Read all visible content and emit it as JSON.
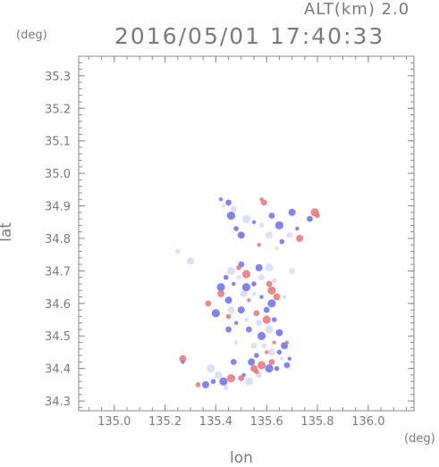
{
  "header": {
    "altitude_label": "ALT(km) 2.0",
    "timestamp": "2016/05/01 17:40:33"
  },
  "axes": {
    "y_unit": "(deg)",
    "x_unit": "(deg)",
    "y_label": "lat",
    "x_label": "lon",
    "x_ticks": [
      "135.0",
      "135.2",
      "135.4",
      "135.6",
      "135.8",
      "136.0"
    ],
    "y_ticks": [
      "34.3",
      "34.4",
      "34.5",
      "34.6",
      "34.7",
      "34.8",
      "34.9",
      "35.0",
      "35.1",
      "35.2",
      "35.3"
    ],
    "x_range": [
      134.86,
      136.18
    ],
    "y_range": [
      34.27,
      35.36
    ]
  },
  "colors": {
    "frame": "#8a8a8a",
    "positive": "#e5747a",
    "negative": "#6b6ee8",
    "neutral": "#d7d9f4"
  },
  "chart_data": {
    "type": "scatter",
    "title": "2016/05/01 17:40:33",
    "xlabel": "lon",
    "ylabel": "lat",
    "xlim": [
      134.86,
      136.18
    ],
    "ylim": [
      34.27,
      35.36
    ],
    "series": [
      {
        "name": "positive",
        "points": [
          [
            135.58,
            34.92
          ],
          [
            135.59,
            34.91
          ],
          [
            135.79,
            34.88
          ],
          [
            135.8,
            34.87
          ],
          [
            135.73,
            34.8
          ],
          [
            135.57,
            34.78
          ],
          [
            135.61,
            34.66
          ],
          [
            135.62,
            34.64
          ],
          [
            135.49,
            34.71
          ],
          [
            135.64,
            34.62
          ],
          [
            135.53,
            34.61
          ],
          [
            135.56,
            34.57
          ],
          [
            135.6,
            34.55
          ],
          [
            135.45,
            34.56
          ],
          [
            135.42,
            34.63
          ],
          [
            135.6,
            34.45
          ],
          [
            135.62,
            34.42
          ],
          [
            135.58,
            34.41
          ],
          [
            135.56,
            34.39
          ],
          [
            135.55,
            34.4
          ],
          [
            135.63,
            34.48
          ],
          [
            135.5,
            34.37
          ],
          [
            135.46,
            34.37
          ],
          [
            135.33,
            34.35
          ],
          [
            135.27,
            34.43
          ],
          [
            135.68,
            34.48
          ],
          [
            135.37,
            34.6
          ],
          [
            135.52,
            34.69
          ]
        ]
      },
      {
        "name": "negative",
        "points": [
          [
            135.42,
            34.92
          ],
          [
            135.45,
            34.91
          ],
          [
            135.46,
            34.87
          ],
          [
            135.48,
            34.83
          ],
          [
            135.5,
            34.81
          ],
          [
            135.55,
            34.85
          ],
          [
            135.62,
            34.87
          ],
          [
            135.65,
            34.84
          ],
          [
            135.66,
            34.79
          ],
          [
            135.7,
            34.88
          ],
          [
            135.72,
            34.83
          ],
          [
            135.77,
            34.86
          ],
          [
            135.42,
            34.65
          ],
          [
            135.44,
            34.68
          ],
          [
            135.45,
            34.61
          ],
          [
            135.47,
            34.66
          ],
          [
            135.5,
            34.72
          ],
          [
            135.52,
            34.65
          ],
          [
            135.55,
            34.66
          ],
          [
            135.57,
            34.71
          ],
          [
            135.58,
            34.62
          ],
          [
            135.6,
            34.58
          ],
          [
            135.62,
            34.6
          ],
          [
            135.63,
            34.55
          ],
          [
            135.5,
            34.58
          ],
          [
            135.48,
            34.54
          ],
          [
            135.53,
            34.52
          ],
          [
            135.58,
            34.5
          ],
          [
            135.65,
            34.45
          ],
          [
            135.67,
            34.47
          ],
          [
            135.69,
            34.43
          ],
          [
            135.68,
            34.41
          ],
          [
            135.61,
            34.4
          ],
          [
            135.64,
            34.4
          ],
          [
            135.54,
            34.42
          ],
          [
            135.51,
            34.38
          ],
          [
            135.47,
            34.42
          ],
          [
            135.43,
            34.36
          ],
          [
            135.39,
            34.36
          ],
          [
            135.36,
            34.35
          ],
          [
            135.27,
            34.42
          ],
          [
            135.45,
            34.52
          ],
          [
            135.4,
            34.57
          ],
          [
            135.56,
            34.44
          ],
          [
            135.65,
            34.51
          ]
        ]
      },
      {
        "name": "neutral",
        "points": [
          [
            135.43,
            34.9
          ],
          [
            135.47,
            34.89
          ],
          [
            135.52,
            34.86
          ],
          [
            135.58,
            34.84
          ],
          [
            135.61,
            34.81
          ],
          [
            135.64,
            34.77
          ],
          [
            135.69,
            34.81
          ],
          [
            135.46,
            34.7
          ],
          [
            135.49,
            34.68
          ],
          [
            135.51,
            34.63
          ],
          [
            135.55,
            34.63
          ],
          [
            135.58,
            34.68
          ],
          [
            135.61,
            34.71
          ],
          [
            135.63,
            34.67
          ],
          [
            135.46,
            34.58
          ],
          [
            135.52,
            34.55
          ],
          [
            135.57,
            34.54
          ],
          [
            135.61,
            34.52
          ],
          [
            135.59,
            34.47
          ],
          [
            135.62,
            34.45
          ],
          [
            135.66,
            34.43
          ],
          [
            135.57,
            34.38
          ],
          [
            135.53,
            34.36
          ],
          [
            135.44,
            34.34
          ],
          [
            135.41,
            34.38
          ],
          [
            135.48,
            34.48
          ],
          [
            135.55,
            34.47
          ],
          [
            135.38,
            34.4
          ],
          [
            135.25,
            34.76
          ],
          [
            135.3,
            34.73
          ],
          [
            135.67,
            34.62
          ],
          [
            135.7,
            34.7
          ]
        ]
      }
    ]
  }
}
